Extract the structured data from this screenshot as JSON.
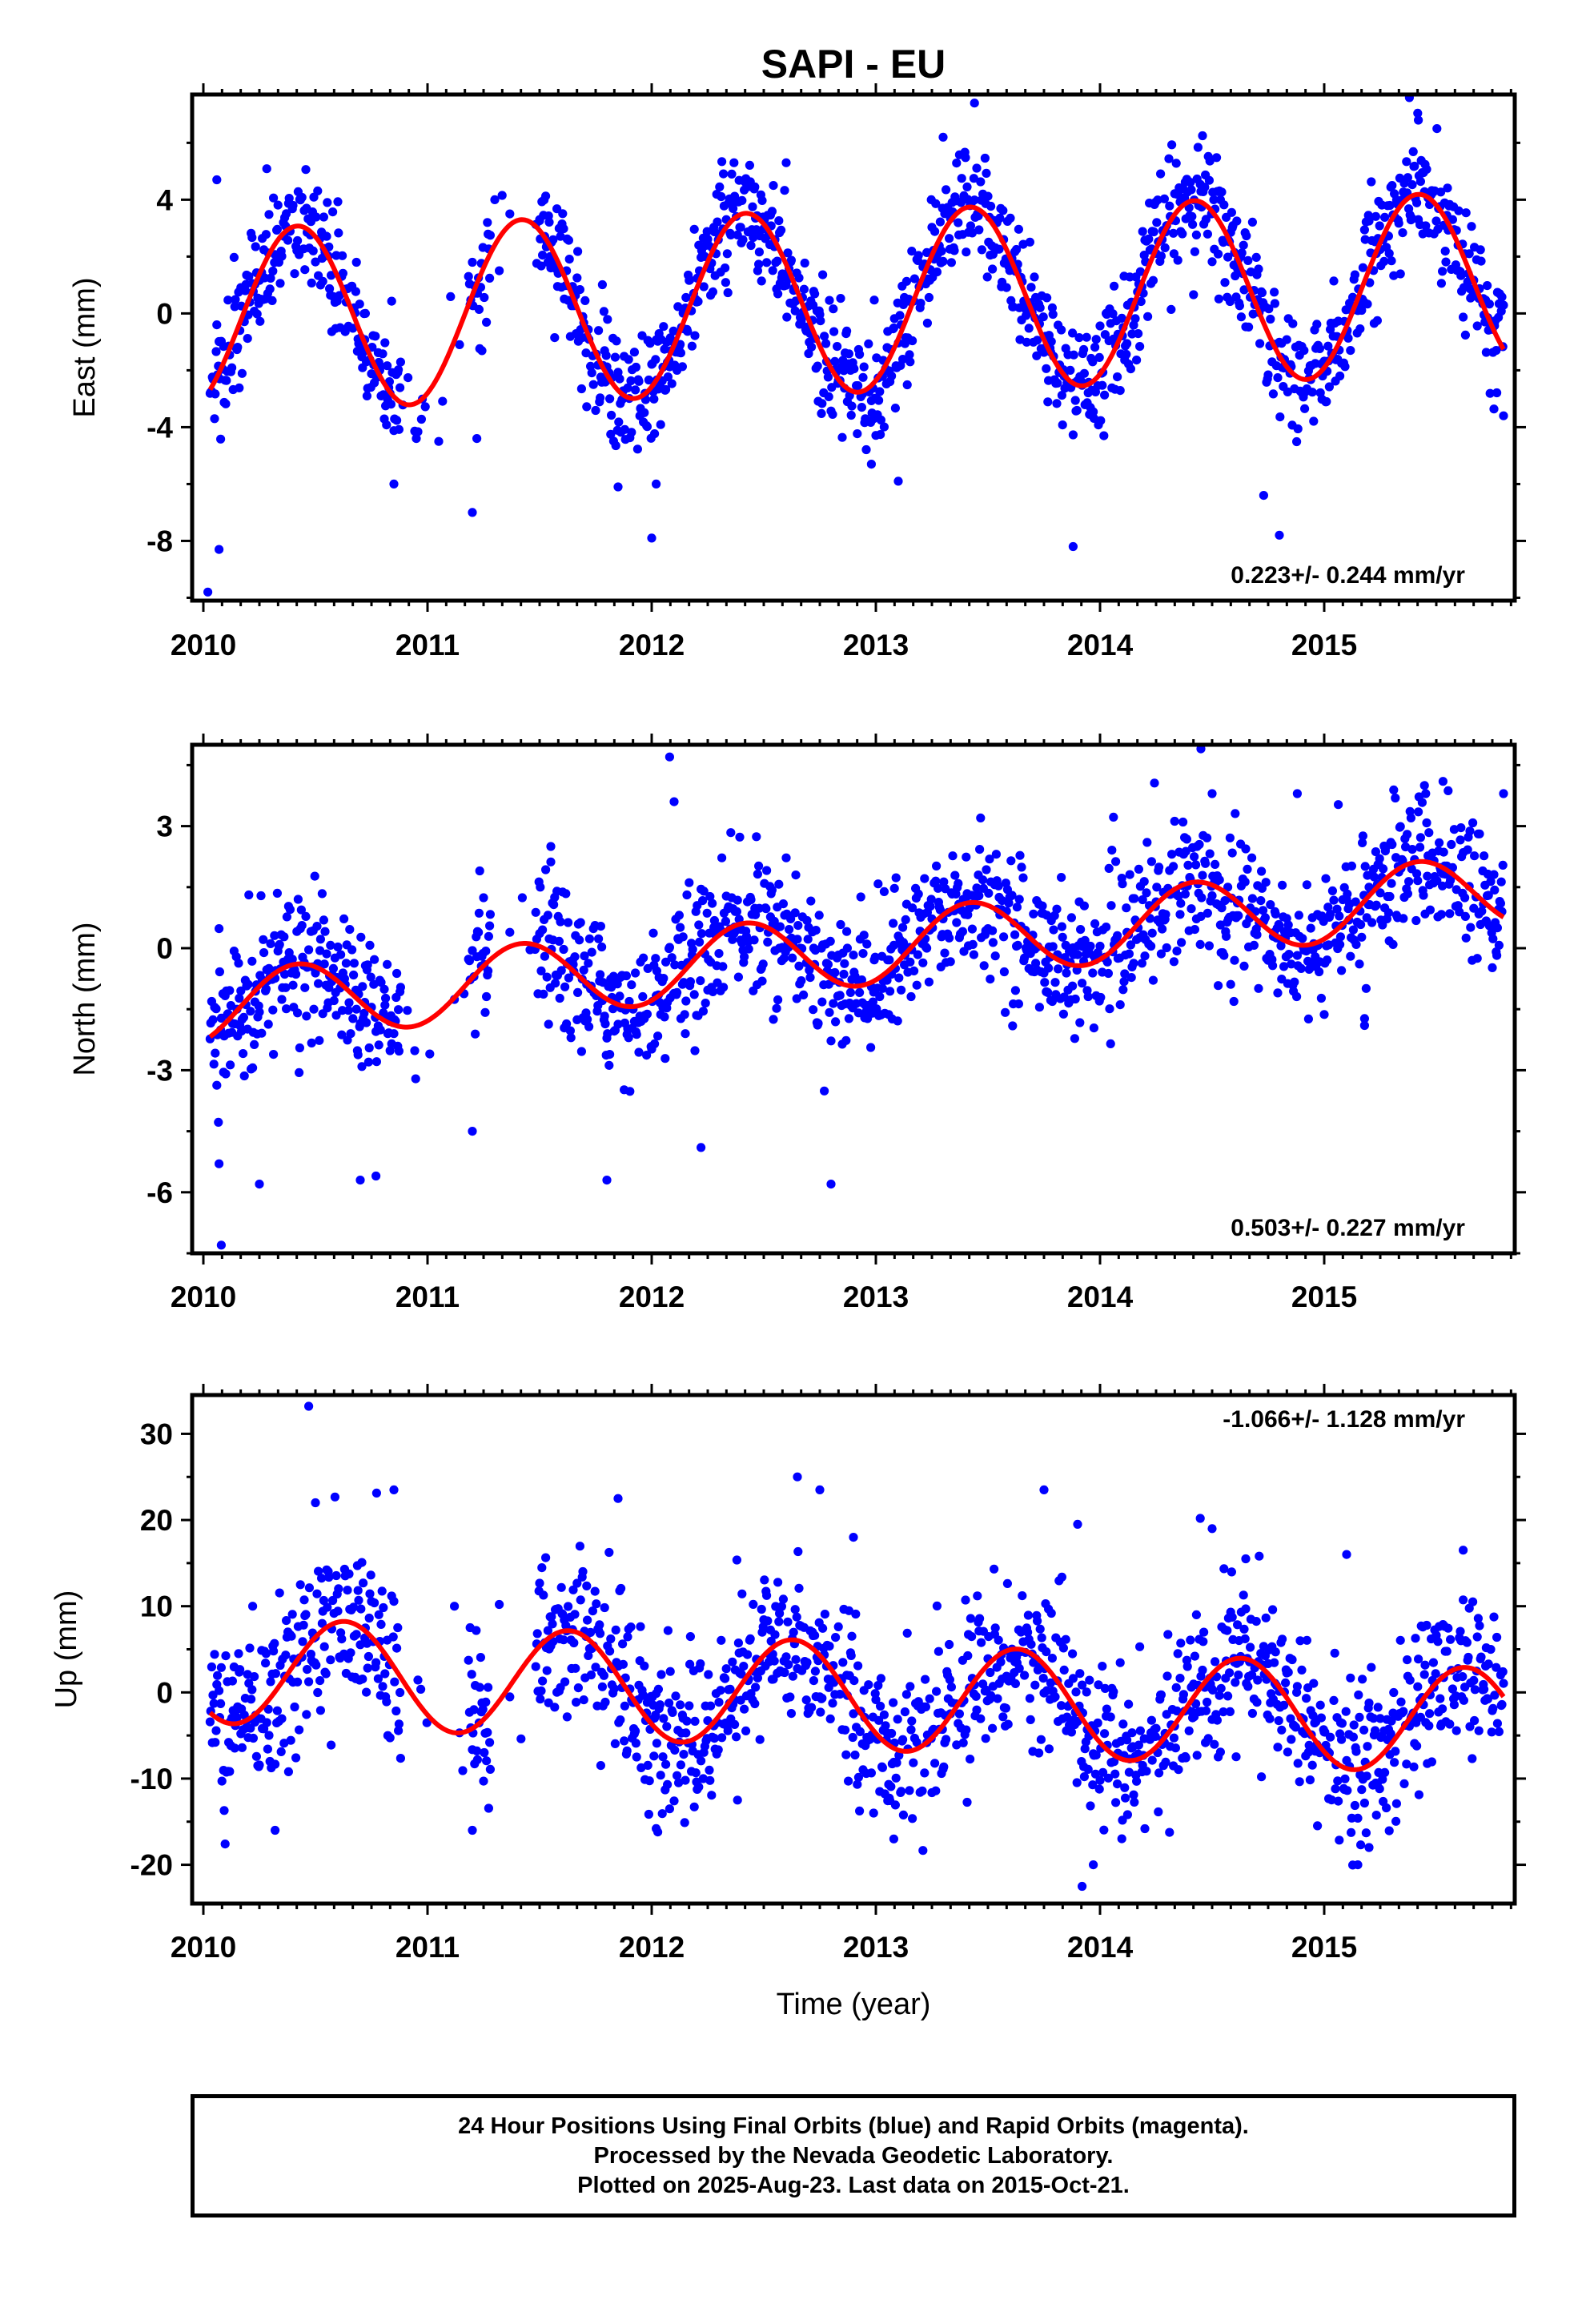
{
  "title": "SAPI - EU",
  "xlabel": "Time (year)",
  "caption": [
    "24 Hour Positions Using Final Orbits (blue) and Rapid Orbits (magenta).",
    "Processed by the Nevada Geodetic Laboratory.",
    "Plotted on 2025-Aug-23. Last data on 2015-Oct-21."
  ],
  "colors": {
    "final_orbits": "#0000ff",
    "fit_curve": "#ff0000",
    "frame": "#000000"
  },
  "chart_data": [
    {
      "type": "scatter",
      "ylabel": "East (mm)",
      "rate_label": "0.223+/- 0.244 mm/yr",
      "rate_position": "bottom-right",
      "xlim": [
        2009.95,
        2015.85
      ],
      "ylim": [
        -10.1,
        7.7
      ],
      "x_ticks": [
        "2010",
        "2011",
        "2012",
        "2013",
        "2014",
        "2015"
      ],
      "y_ticks": [
        "4",
        "0",
        "-4",
        "-8"
      ],
      "y_tick_values": [
        4,
        0,
        -4,
        -8
      ],
      "grid": false,
      "fit": {
        "offset": -0.22,
        "rate": 0.223,
        "amplitude": 3.2,
        "phase_year": 2010.42
      },
      "series": [],
      "outliers": [
        [
          2010.02,
          -9.8
        ],
        [
          2010.07,
          -8.3
        ],
        [
          2010.06,
          4.7
        ],
        [
          2011.2,
          -7.0
        ],
        [
          2011.22,
          -4.4
        ],
        [
          2011.3,
          4.0
        ],
        [
          2011.85,
          -6.1
        ],
        [
          2012.0,
          -7.9
        ],
        [
          2012.02,
          -6.0
        ],
        [
          2012.6,
          5.3
        ],
        [
          2013.1,
          -5.9
        ],
        [
          2013.3,
          6.2
        ],
        [
          2013.44,
          7.4
        ],
        [
          2013.88,
          -8.2
        ],
        [
          2014.73,
          -6.4
        ],
        [
          2014.8,
          -7.8
        ],
        [
          2015.42,
          6.8
        ],
        [
          2015.8,
          -3.6
        ],
        [
          2010.95,
          -4.4
        ],
        [
          2011.05,
          -4.5
        ],
        [
          2010.85,
          -6.0
        ],
        [
          2011.5,
          3.3
        ],
        [
          2012.98,
          -5.3
        ]
      ]
    },
    {
      "type": "scatter",
      "ylabel": "North (mm)",
      "rate_label": "0.503+/- 0.227 mm/yr",
      "rate_position": "bottom-right",
      "xlim": [
        2009.95,
        2015.85
      ],
      "ylim": [
        -7.5,
        5.0
      ],
      "x_ticks": [
        "2010",
        "2011",
        "2012",
        "2013",
        "2014",
        "2015"
      ],
      "y_ticks": [
        "3",
        "0",
        "-3",
        "-6"
      ],
      "y_tick_values": [
        3,
        0,
        -3,
        -6
      ],
      "grid": false,
      "fit": {
        "offset": -1.5,
        "rate": 0.503,
        "amplitude": 0.9,
        "phase_year": 2010.42
      },
      "series": [],
      "outliers": [
        [
          2010.08,
          -7.3
        ],
        [
          2010.07,
          -5.3
        ],
        [
          2010.25,
          -5.8
        ],
        [
          2011.8,
          -5.7
        ],
        [
          2012.08,
          4.7
        ],
        [
          2012.1,
          3.6
        ],
        [
          2012.22,
          -4.9
        ],
        [
          2012.8,
          -5.8
        ],
        [
          2014.45,
          4.9
        ],
        [
          2014.5,
          3.8
        ],
        [
          2014.88,
          3.8
        ],
        [
          2015.53,
          4.1
        ],
        [
          2015.18,
          -1.9
        ],
        [
          2015.8,
          3.8
        ],
        [
          2010.77,
          -5.6
        ],
        [
          2010.7,
          -5.7
        ],
        [
          2011.2,
          -4.5
        ],
        [
          2011.55,
          2.5
        ]
      ]
    },
    {
      "type": "scatter",
      "ylabel": "Up (mm)",
      "rate_label": "-1.066+/- 1.128 mm/yr",
      "rate_position": "top-right",
      "xlim": [
        2009.95,
        2015.85
      ],
      "ylim": [
        -24.5,
        34.5
      ],
      "x_ticks": [
        "2010",
        "2011",
        "2012",
        "2013",
        "2014",
        "2015"
      ],
      "y_ticks": [
        "30",
        "20",
        "10",
        "0",
        "-10",
        "-20"
      ],
      "y_tick_values": [
        30,
        20,
        10,
        0,
        -10,
        -20
      ],
      "grid": false,
      "fit": {
        "offset": 2.7,
        "rate": -1.066,
        "amplitude": 6.2,
        "phase_year": 2010.63
      },
      "series": [],
      "outliers": [
        [
          2010.47,
          33.2
        ],
        [
          2010.5,
          22.0
        ],
        [
          2010.85,
          23.5
        ],
        [
          2011.85,
          22.5
        ],
        [
          2012.65,
          25.0
        ],
        [
          2012.75,
          23.5
        ],
        [
          2013.75,
          23.5
        ],
        [
          2013.9,
          19.5
        ],
        [
          2013.92,
          -22.5
        ],
        [
          2013.97,
          -20.0
        ],
        [
          2015.15,
          -20.0
        ],
        [
          2015.2,
          -18.0
        ],
        [
          2015.62,
          16.5
        ],
        [
          2010.32,
          -16.0
        ],
        [
          2011.2,
          -16.0
        ],
        [
          2012.02,
          -15.8
        ],
        [
          2013.08,
          -17.0
        ],
        [
          2011.12,
          10.0
        ],
        [
          2011.32,
          10.2
        ],
        [
          2010.22,
          10.0
        ],
        [
          2012.9,
          18.0
        ],
        [
          2014.5,
          19.0
        ],
        [
          2014.65,
          15.5
        ],
        [
          2015.1,
          16.0
        ]
      ]
    }
  ],
  "data_gaps": [
    [
      2010.88,
      2011.18
    ],
    [
      2011.28,
      2011.48
    ]
  ]
}
